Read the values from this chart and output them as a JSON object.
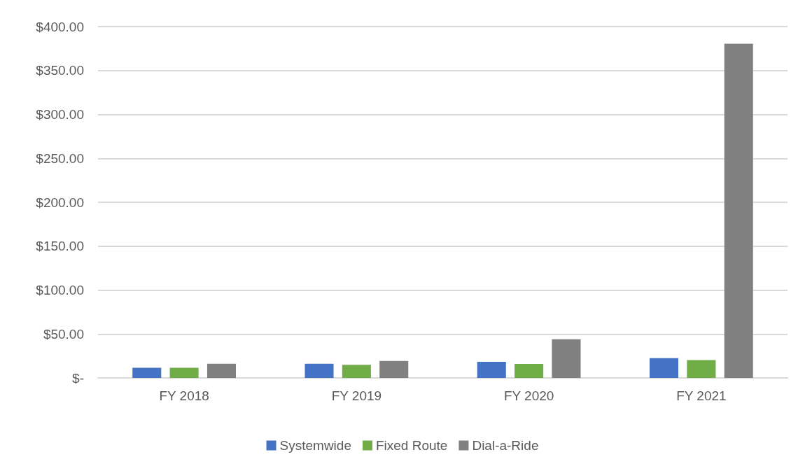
{
  "chart_data": {
    "type": "bar",
    "categories": [
      "FY 2018",
      "FY 2019",
      "FY 2020",
      "FY 2021"
    ],
    "series": [
      {
        "name": "Systemwide",
        "color": "#4472c4",
        "values": [
          11.5,
          16.2,
          18.3,
          22.6
        ]
      },
      {
        "name": "Fixed Route",
        "color": "#70ad47",
        "values": [
          11.5,
          14.9,
          15.9,
          20.4
        ]
      },
      {
        "name": "Dial-a-Ride",
        "color": "#808080",
        "values": [
          16.2,
          19.4,
          44,
          380.4
        ]
      }
    ],
    "ylim": [
      0,
      400
    ],
    "yticks": [
      {
        "value": 0,
        "label": "$-"
      },
      {
        "value": 50,
        "label": "$50.00"
      },
      {
        "value": 100,
        "label": "$100.00"
      },
      {
        "value": 150,
        "label": "$150.00"
      },
      {
        "value": 200,
        "label": "$200.00"
      },
      {
        "value": 250,
        "label": "$250.00"
      },
      {
        "value": 300,
        "label": "$300.00"
      },
      {
        "value": 350,
        "label": "$350.00"
      },
      {
        "value": 400,
        "label": "$400.00"
      }
    ],
    "grid": "y",
    "legend": "bottom"
  }
}
